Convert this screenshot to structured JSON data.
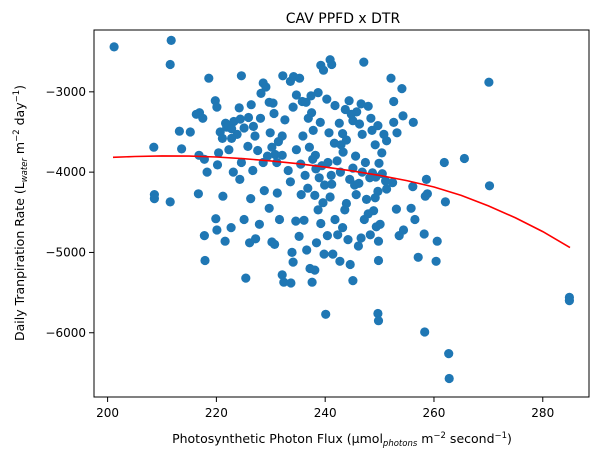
{
  "chart_data": {
    "type": "scatter",
    "title": "CAV PPFD x DTR",
    "xlabel": {
      "main": "Photosynthetic Photon Flux (µmol",
      "sub": "photons",
      "mid": " m",
      "sup1": "−2",
      "tail": " second",
      "sup2": "−1",
      "end": ")"
    },
    "ylabel": {
      "main": "Daily Tranpiration Rate (L",
      "sub": "water",
      "mid": " m",
      "sup1": "−2",
      "tail": " day",
      "sup2": "−1",
      "end": ")"
    },
    "xlim": [
      197.5,
      288.5
    ],
    "ylim": [
      -6800,
      -2230
    ],
    "xticks": [
      200,
      220,
      240,
      260,
      280
    ],
    "yticks": [
      -6000,
      -5000,
      -4000,
      -3000
    ],
    "xtick_labels": [
      "200",
      "220",
      "240",
      "260",
      "280"
    ],
    "ytick_labels": [
      "−6000",
      "−5000",
      "−4000",
      "−3000"
    ],
    "grid": false,
    "point_color": "#1f77b4",
    "line_color": "#ff0000",
    "fit_line": {
      "x": [
        201,
        205,
        210,
        215,
        220,
        225,
        230,
        235,
        240,
        245,
        250,
        255,
        260,
        265,
        270,
        275,
        280,
        285
      ],
      "y": [
        -3815,
        -3805,
        -3798,
        -3800,
        -3812,
        -3832,
        -3860,
        -3895,
        -3937,
        -3985,
        -4040,
        -4105,
        -4185,
        -4290,
        -4420,
        -4570,
        -4740,
        -4940
      ]
    },
    "points": [
      [
        201.2,
        -2440
      ],
      [
        211.7,
        -2360
      ],
      [
        211.5,
        -2660
      ],
      [
        208.5,
        -3690
      ],
      [
        208.6,
        -4280
      ],
      [
        208.6,
        -4330
      ],
      [
        211.5,
        -4370
      ],
      [
        213.2,
        -3490
      ],
      [
        213.6,
        -3710
      ],
      [
        215.2,
        -3500
      ],
      [
        216.3,
        -3280
      ],
      [
        216.9,
        -3260
      ],
      [
        217.5,
        -3330
      ],
      [
        218.6,
        -2830
      ],
      [
        216.8,
        -3790
      ],
      [
        217.8,
        -3840
      ],
      [
        218.3,
        -4000
      ],
      [
        216.7,
        -4270
      ],
      [
        219.8,
        -3110
      ],
      [
        220.1,
        -3190
      ],
      [
        220.7,
        -3500
      ],
      [
        220.4,
        -3760
      ],
      [
        220.2,
        -3910
      ],
      [
        221.1,
        -3580
      ],
      [
        221.7,
        -3390
      ],
      [
        221.9,
        -3440
      ],
      [
        222.3,
        -3420
      ],
      [
        222.8,
        -3580
      ],
      [
        223.2,
        -3370
      ],
      [
        223.8,
        -3530
      ],
      [
        224.4,
        -3340
      ],
      [
        224.6,
        -2800
      ],
      [
        225.1,
        -3450
      ],
      [
        225.9,
        -3320
      ],
      [
        226.8,
        -3430
      ],
      [
        227.1,
        -3550
      ],
      [
        228.2,
        -3020
      ],
      [
        228.6,
        -2890
      ],
      [
        229.1,
        -2940
      ],
      [
        229.7,
        -3130
      ],
      [
        230.4,
        -3140
      ],
      [
        229.9,
        -3510
      ],
      [
        230.8,
        -3780
      ],
      [
        231.4,
        -3620
      ],
      [
        232.2,
        -2800
      ],
      [
        232.1,
        -3550
      ],
      [
        233.6,
        -2870
      ],
      [
        234.2,
        -2810
      ],
      [
        234.7,
        -3040
      ],
      [
        235.3,
        -2830
      ],
      [
        235.8,
        -3120
      ],
      [
        236.5,
        -3130
      ],
      [
        236.9,
        -3330
      ],
      [
        237.5,
        -3260
      ],
      [
        237.8,
        -3480
      ],
      [
        238.2,
        -3790
      ],
      [
        238.7,
        -3010
      ],
      [
        239.2,
        -2670
      ],
      [
        239.7,
        -2730
      ],
      [
        240.3,
        -3090
      ],
      [
        240.9,
        -2600
      ],
      [
        241.2,
        -2660
      ],
      [
        241.8,
        -3170
      ],
      [
        242.6,
        -3390
      ],
      [
        243.2,
        -3520
      ],
      [
        243.7,
        -3220
      ],
      [
        244.4,
        -3110
      ],
      [
        245.1,
        -3360
      ],
      [
        245.8,
        -3250
      ],
      [
        246.3,
        -3400
      ],
      [
        246.8,
        -3530
      ],
      [
        247.1,
        -2630
      ],
      [
        247.9,
        -3180
      ],
      [
        248.6,
        -3480
      ],
      [
        249.2,
        -3660
      ],
      [
        249.7,
        -3420
      ],
      [
        250.4,
        -3760
      ],
      [
        251.3,
        -3610
      ],
      [
        252.1,
        -2830
      ],
      [
        252.6,
        -3120
      ],
      [
        253.2,
        -3510
      ],
      [
        254.1,
        -2960
      ],
      [
        254.3,
        -3300
      ],
      [
        256.2,
        -3380
      ],
      [
        258.6,
        -4090
      ],
      [
        258.8,
        -4270
      ],
      [
        258.4,
        -4300
      ],
      [
        258.2,
        -4770
      ],
      [
        258.3,
        -5990
      ],
      [
        262.7,
        -6260
      ],
      [
        262.8,
        -6570
      ],
      [
        261.9,
        -3880
      ],
      [
        262.1,
        -4370
      ],
      [
        260.6,
        -4860
      ],
      [
        260.4,
        -5110
      ],
      [
        265.6,
        -3830
      ],
      [
        270.1,
        -2880
      ],
      [
        270.2,
        -4170
      ],
      [
        284.9,
        -5560
      ],
      [
        284.9,
        -5600
      ],
      [
        217.8,
        -4790
      ],
      [
        217.9,
        -5100
      ],
      [
        219.9,
        -4580
      ],
      [
        220.1,
        -4720
      ],
      [
        221.2,
        -4300
      ],
      [
        221.6,
        -4860
      ],
      [
        222.7,
        -4690
      ],
      [
        224.3,
        -4090
      ],
      [
        225.1,
        -4590
      ],
      [
        226.3,
        -4330
      ],
      [
        226.1,
        -4880
      ],
      [
        225.4,
        -5320
      ],
      [
        227.2,
        -4830
      ],
      [
        227.9,
        -4650
      ],
      [
        228.8,
        -4230
      ],
      [
        229.7,
        -4450
      ],
      [
        230.2,
        -4870
      ],
      [
        230.7,
        -4900
      ],
      [
        231.2,
        -4260
      ],
      [
        231.6,
        -4590
      ],
      [
        232.4,
        -5370
      ],
      [
        232.1,
        -5280
      ],
      [
        233.7,
        -5380
      ],
      [
        233.9,
        -5000
      ],
      [
        234.1,
        -5120
      ],
      [
        234.6,
        -4610
      ],
      [
        235.2,
        -4800
      ],
      [
        235.6,
        -4280
      ],
      [
        236.1,
        -4600
      ],
      [
        236.6,
        -4970
      ],
      [
        237.2,
        -5200
      ],
      [
        237.6,
        -5370
      ],
      [
        238.1,
        -5220
      ],
      [
        238.4,
        -4880
      ],
      [
        238.7,
        -4470
      ],
      [
        239.2,
        -4640
      ],
      [
        239.8,
        -5020
      ],
      [
        240.1,
        -5770
      ],
      [
        240.4,
        -4790
      ],
      [
        240.9,
        -4310
      ],
      [
        241.4,
        -5020
      ],
      [
        241.8,
        -4590
      ],
      [
        242.3,
        -4780
      ],
      [
        242.7,
        -5110
      ],
      [
        243.2,
        -4690
      ],
      [
        243.9,
        -4390
      ],
      [
        244.2,
        -4840
      ],
      [
        244.6,
        -5150
      ],
      [
        245.1,
        -5350
      ],
      [
        245.7,
        -4280
      ],
      [
        246.1,
        -4920
      ],
      [
        246.6,
        -4820
      ],
      [
        247.2,
        -4590
      ],
      [
        247.6,
        -4340
      ],
      [
        248.3,
        -4780
      ],
      [
        248.9,
        -4480
      ],
      [
        249.4,
        -4680
      ],
      [
        249.8,
        -4860
      ],
      [
        249.8,
        -5100
      ],
      [
        249.7,
        -5760
      ],
      [
        249.8,
        -5850
      ],
      [
        251.3,
        -4210
      ],
      [
        252.4,
        -4130
      ],
      [
        253.1,
        -4460
      ],
      [
        253.6,
        -4790
      ],
      [
        254.4,
        -4720
      ],
      [
        256.1,
        -4180
      ],
      [
        255.8,
        -4450
      ],
      [
        256.5,
        -4590
      ],
      [
        257.1,
        -5060
      ],
      [
        222.3,
        -3720
      ],
      [
        223.1,
        -4000
      ],
      [
        224.6,
        -3880
      ],
      [
        225.8,
        -3680
      ],
      [
        226.7,
        -3980
      ],
      [
        227.6,
        -3730
      ],
      [
        228.6,
        -3880
      ],
      [
        229.4,
        -3800
      ],
      [
        230.2,
        -3690
      ],
      [
        231.1,
        -3880
      ],
      [
        232.1,
        -3790
      ],
      [
        233.2,
        -3980
      ],
      [
        233.6,
        -4120
      ],
      [
        234.7,
        -3720
      ],
      [
        235.5,
        -3900
      ],
      [
        236.3,
        -4040
      ],
      [
        237.1,
        -3690
      ],
      [
        237.7,
        -3840
      ],
      [
        238.3,
        -3960
      ],
      [
        238.9,
        -4070
      ],
      [
        239.4,
        -3920
      ],
      [
        239.9,
        -4160
      ],
      [
        240.5,
        -3880
      ],
      [
        241.1,
        -4040
      ],
      [
        241.7,
        -3640
      ],
      [
        242.2,
        -3860
      ],
      [
        242.8,
        -4000
      ],
      [
        243.3,
        -3750
      ],
      [
        243.9,
        -3600
      ],
      [
        244.5,
        -4090
      ],
      [
        245.1,
        -3950
      ],
      [
        245.6,
        -3800
      ],
      [
        246.2,
        -4140
      ],
      [
        246.8,
        -4000
      ],
      [
        247.4,
        -3880
      ],
      [
        248.2,
        -4070
      ],
      [
        248.7,
        -4010
      ],
      [
        249.3,
        -4060
      ],
      [
        249.9,
        -3890
      ],
      [
        250.5,
        -4020
      ],
      [
        251.1,
        -4110
      ],
      [
        249.7,
        -4240
      ],
      [
        222.8,
        -3460
      ],
      [
        224.2,
        -3200
      ],
      [
        226.4,
        -3160
      ],
      [
        228.1,
        -3330
      ],
      [
        230.6,
        -3270
      ],
      [
        232.6,
        -3350
      ],
      [
        234.1,
        -3190
      ],
      [
        235.9,
        -3550
      ],
      [
        237.4,
        -3050
      ],
      [
        239.1,
        -3380
      ],
      [
        240.7,
        -3510
      ],
      [
        242.9,
        -3660
      ],
      [
        244.8,
        -3280
      ],
      [
        246.6,
        -3150
      ],
      [
        248.4,
        -3330
      ],
      [
        250.8,
        -3530
      ],
      [
        252.6,
        -3380
      ],
      [
        236.8,
        -4200
      ],
      [
        238.1,
        -4290
      ],
      [
        239.6,
        -4380
      ],
      [
        241.2,
        -4150
      ],
      [
        243.6,
        -4470
      ],
      [
        245.4,
        -4160
      ],
      [
        247.9,
        -4520
      ],
      [
        249.2,
        -4320
      ],
      [
        250.1,
        -4650
      ]
    ]
  }
}
